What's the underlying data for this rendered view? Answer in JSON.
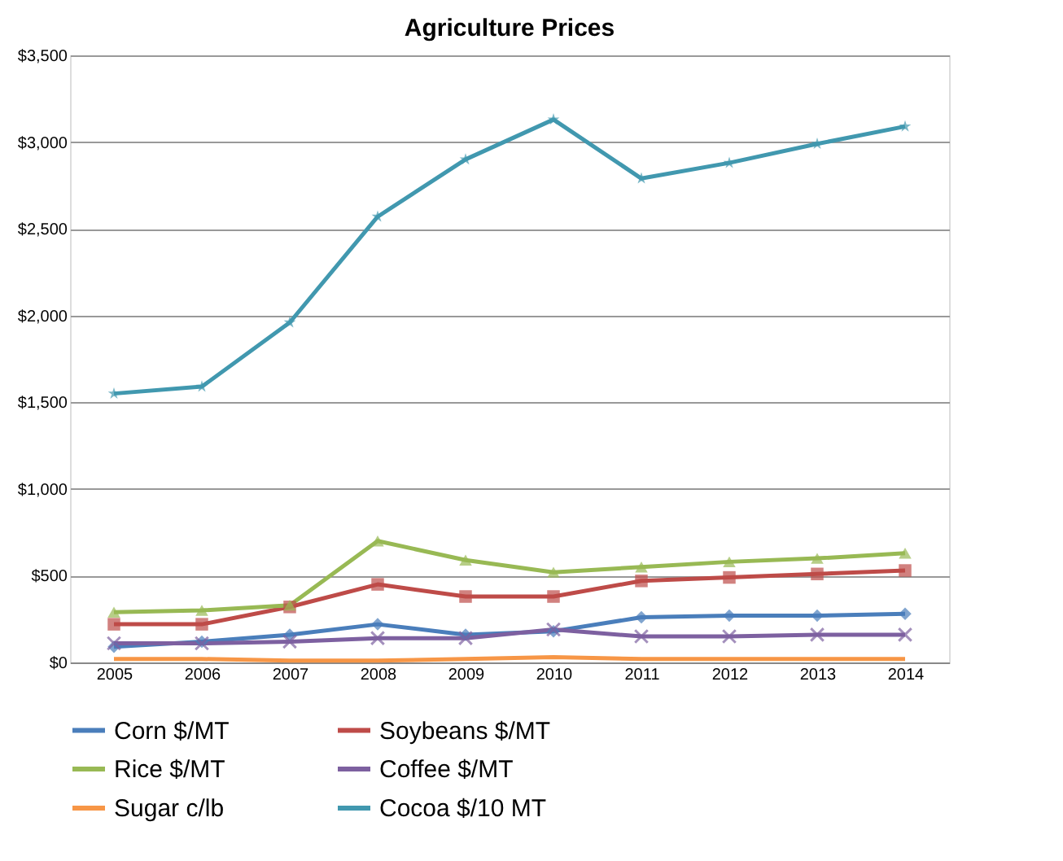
{
  "chart_data": {
    "type": "line",
    "title": "Agriculture Prices",
    "categories": [
      "2005",
      "2006",
      "2007",
      "2008",
      "2009",
      "2010",
      "2011",
      "2012",
      "2013",
      "2014"
    ],
    "ylim": [
      0,
      3500
    ],
    "yticks": [
      {
        "value": 0,
        "label": "$0"
      },
      {
        "value": 500,
        "label": "$500"
      },
      {
        "value": 1000,
        "label": "$1,000"
      },
      {
        "value": 1500,
        "label": "$1,500"
      },
      {
        "value": 2000,
        "label": "$2,000"
      },
      {
        "value": 2500,
        "label": "$2,500"
      },
      {
        "value": 3000,
        "label": "$3,000"
      },
      {
        "value": 3500,
        "label": "$3,500"
      }
    ],
    "grid": "y",
    "legend": "bottom",
    "series": [
      {
        "name": "Corn $/MT",
        "color": "#4a7ebb",
        "marker": "diamond",
        "values": [
          90,
          120,
          160,
          220,
          160,
          180,
          260,
          270,
          270,
          280
        ]
      },
      {
        "name": "Soybeans $/MT",
        "color": "#be4b48",
        "marker": "square",
        "values": [
          220,
          220,
          320,
          450,
          380,
          380,
          470,
          490,
          510,
          530
        ]
      },
      {
        "name": "Rice $/MT",
        "color": "#98b954",
        "marker": "triangle",
        "values": [
          290,
          300,
          330,
          700,
          590,
          520,
          550,
          580,
          600,
          630
        ]
      },
      {
        "name": "Coffee $/MT",
        "color": "#7d60a0",
        "marker": "cross",
        "values": [
          110,
          110,
          120,
          140,
          140,
          190,
          150,
          150,
          160,
          160
        ]
      },
      {
        "name": "Sugar c/lb",
        "color": "#f79646",
        "marker": "none",
        "values": [
          20,
          20,
          10,
          10,
          20,
          30,
          20,
          20,
          20,
          20
        ]
      },
      {
        "name": "Cocoa $/10 MT",
        "color": "#4198af",
        "marker": "star",
        "values": [
          1550,
          1590,
          1960,
          2570,
          2900,
          3130,
          2790,
          2880,
          2990,
          3090
        ]
      }
    ]
  }
}
